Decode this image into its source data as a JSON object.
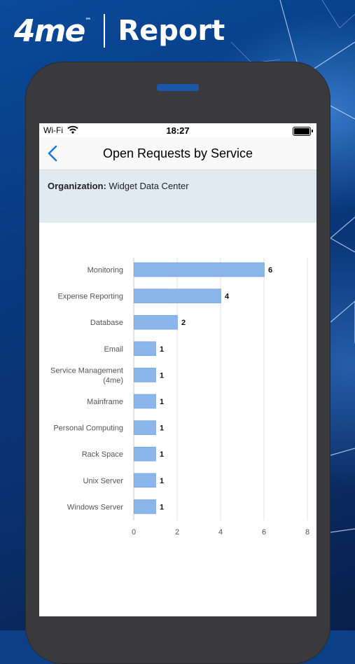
{
  "brand": {
    "logo": "4me",
    "trademark": "™",
    "title": "Report"
  },
  "status_bar": {
    "carrier": "Wi-Fi",
    "time": "18:27"
  },
  "nav": {
    "title": "Open Requests by Service"
  },
  "filter": {
    "label": "Organization:",
    "value": "Widget Data Center"
  },
  "colors": {
    "bar": "#8ab6ec",
    "bar_stroke": "#6a9be0",
    "accent": "#1a7ae0"
  },
  "chart_data": {
    "type": "bar",
    "orientation": "horizontal",
    "categories": [
      "Monitoring",
      "Expense Reporting",
      "Database",
      "Email",
      "Service Management (4me)",
      "Mainframe",
      "Personal Computing",
      "Rack Space",
      "Unix Server",
      "Windows Server"
    ],
    "values": [
      6,
      4,
      2,
      1,
      1,
      1,
      1,
      1,
      1,
      1
    ],
    "xlim": [
      0,
      8
    ],
    "xticks": [
      0,
      2,
      4,
      6,
      8
    ],
    "grid": true,
    "data_labels": true
  }
}
